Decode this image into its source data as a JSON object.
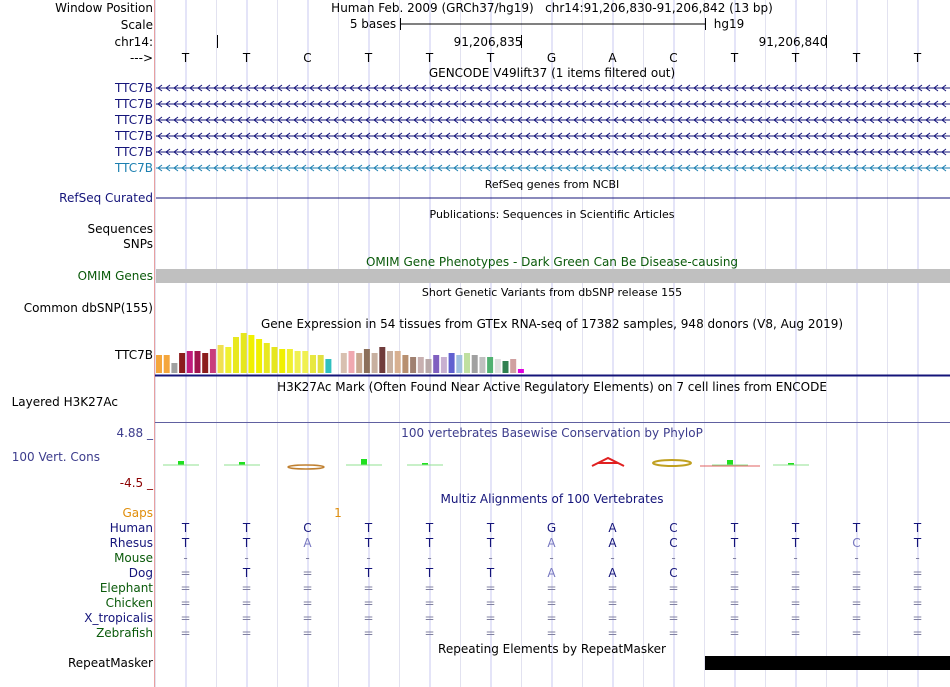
{
  "header": {
    "window_position_label": "Window Position",
    "scale_label": "Scale",
    "chrom_label": "chr14:",
    "strand_label": "--->",
    "assembly": "Human Feb. 2009 (GRCh37/hg19)",
    "position": "chr14:91,206,830-91,206,842 (13 bp)",
    "scale_text": "5 bases",
    "scale_db": "hg19",
    "coord_1": "91,206,835",
    "coord_2": "91,206,840"
  },
  "bases": [
    "T",
    "T",
    "C",
    "T",
    "T",
    "T",
    "G",
    "A",
    "C",
    "T",
    "T",
    "T",
    "T"
  ],
  "tracks": {
    "gencode": {
      "title": "GENCODE V49lift37 (1 items filtered out)",
      "genes": [
        "TTC7B",
        "TTC7B",
        "TTC7B",
        "TTC7B",
        "TTC7B",
        "TTC7B"
      ]
    },
    "refseq": {
      "title": "RefSeq genes from NCBI",
      "label": "RefSeq Curated"
    },
    "publications": {
      "title": "Publications: Sequences in Scientific Articles",
      "label_1": "Sequences",
      "label_2": "SNPs"
    },
    "omim": {
      "title": "OMIM Gene Phenotypes - Dark Green Can Be Disease-causing",
      "label": "OMIM Genes"
    },
    "dbsnp": {
      "title": "Short Genetic Variants from dbSNP release 155",
      "label": "Common dbSNP(155)"
    },
    "gtex": {
      "title": "Gene Expression in 54 tissues from GTEx RNA-seq of 17382 samples, 948 donors (V8, Aug 2019)",
      "label": "TTC7B"
    },
    "h3k27ac": {
      "title": "H3K27Ac Mark (Often Found Near Active Regulatory Elements) on 7 cell lines from ENCODE",
      "label": "Layered H3K27Ac"
    },
    "conservation": {
      "title": "100 vertebrates Basewise Conservation by PhyloP",
      "label": "100 Vert. Cons",
      "max": "4.88 _",
      "min": "-4.5 _"
    },
    "multiz": {
      "title": "Multiz Alignments of 100 Vertebrates",
      "gaps_label": "Gaps",
      "gaps_value": "1",
      "species": [
        {
          "name": "Human",
          "seq": [
            "T",
            "T",
            "C",
            "T",
            "T",
            "T",
            "G",
            "A",
            "C",
            "T",
            "T",
            "T",
            "T"
          ]
        },
        {
          "name": "Rhesus",
          "seq": [
            "T",
            "T",
            "A",
            "T",
            "T",
            "T",
            "A",
            "A",
            "C",
            "T",
            "T",
            "C",
            "T"
          ]
        },
        {
          "name": "Mouse",
          "seq": [
            "-",
            "-",
            "-",
            "-",
            "-",
            "-",
            "-",
            "-",
            "-",
            "-",
            "-",
            "-",
            "-"
          ]
        },
        {
          "name": "Dog",
          "seq": [
            "=",
            "T",
            "=",
            "T",
            "T",
            "T",
            "A",
            "A",
            "C",
            "=",
            "=",
            "=",
            "="
          ]
        },
        {
          "name": "Elephant",
          "seq": [
            "=",
            "=",
            "=",
            "=",
            "=",
            "=",
            "=",
            "=",
            "=",
            "=",
            "=",
            "=",
            "="
          ]
        },
        {
          "name": "Chicken",
          "seq": [
            "=",
            "=",
            "=",
            "=",
            "=",
            "=",
            "=",
            "=",
            "=",
            "=",
            "=",
            "=",
            "="
          ]
        },
        {
          "name": "X_tropicalis",
          "seq": [
            "=",
            "=",
            "=",
            "=",
            "=",
            "=",
            "=",
            "=",
            "=",
            "=",
            "=",
            "=",
            "="
          ]
        },
        {
          "name": "Zebrafish",
          "seq": [
            "=",
            "=",
            "=",
            "=",
            "=",
            "=",
            "=",
            "=",
            "=",
            "=",
            "=",
            "=",
            "="
          ]
        }
      ]
    },
    "repeatmasker": {
      "title": "Repeating Elements by RepeatMasker",
      "label": "RepeatMasker"
    }
  },
  "colors": {
    "gencode": "#14147a",
    "gencode_last": "#1c7fb0",
    "omim_bar": "#c0c0c0",
    "gtex_bars": [
      "#f4a63c",
      "#f4a63c",
      "#a0a0a0",
      "#8b1c1c",
      "#c01c7c",
      "#a0144c",
      "#8b1c1c",
      "#c83c7c",
      "#f0e050",
      "#f0f030",
      "#e8e820",
      "#e6e61e",
      "#f0f000",
      "#f0f000",
      "#e8e820",
      "#e6e61e",
      "#f0f000",
      "#f0f030",
      "#f0f050",
      "#f0f050",
      "#e8e840",
      "#e0e040",
      "#30c0c0",
      "#ffffff",
      "#d8c0b0",
      "#f0a8b0",
      "#c8a890",
      "#8b6f5a",
      "#c8b0a0",
      "#703c3c",
      "#c8b0a0",
      "#d8b090",
      "#b89070",
      "#a08070",
      "#c8b0b0",
      "#b8a8a8",
      "#8060c0",
      "#c8b0d0",
      "#6060d0",
      "#a0c0e0",
      "#c0e0a0",
      "#a0a0a0",
      "#c0c0c0",
      "#50b070",
      "#e0e0e0",
      "#308050",
      "#d0a0a0",
      "#e000e0"
    ]
  }
}
